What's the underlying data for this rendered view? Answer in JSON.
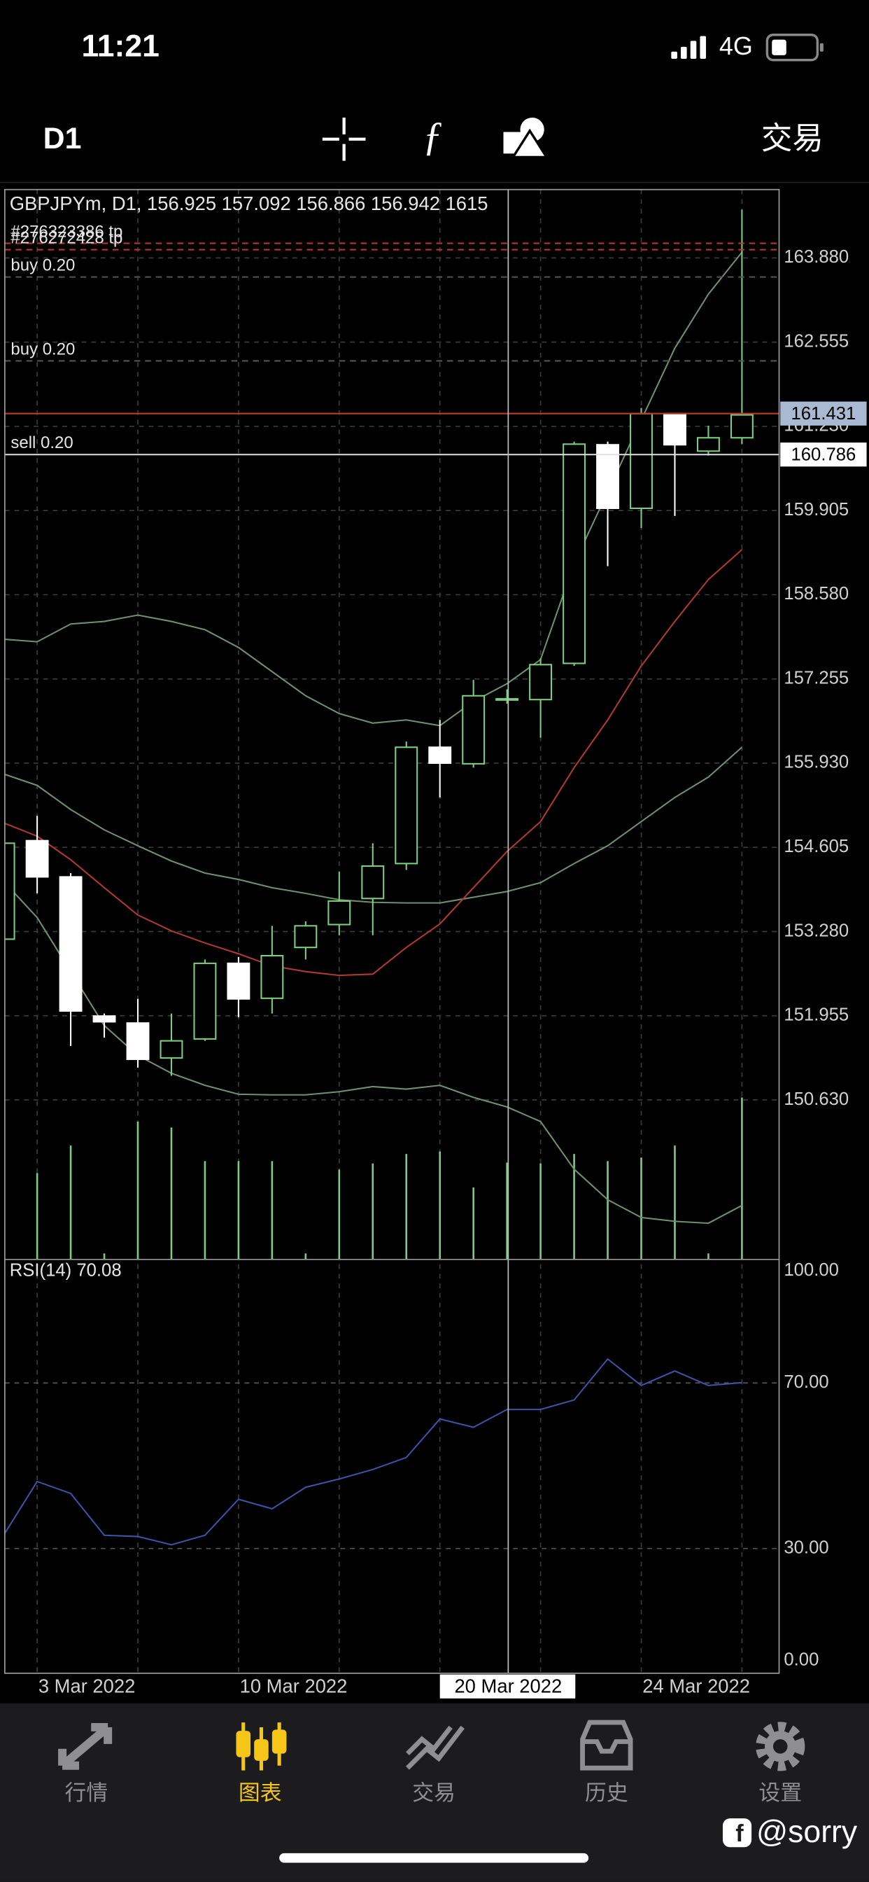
{
  "status_bar": {
    "time": "11:21",
    "network": "4G"
  },
  "toolbar": {
    "timeframe": "D1",
    "trade": "交易"
  },
  "chart_data": {
    "type": "candlestick",
    "title": "GBPJPYm, D1, 156.925 157.092 156.866 156.942 1615",
    "categories": [
      null,
      "3 Mar 2022",
      null,
      null,
      null,
      null,
      null,
      "10 Mar 2022",
      null,
      null,
      null,
      null,
      null,
      null,
      null,
      "20 Mar 2022",
      null,
      null,
      null,
      "24 Mar 2022",
      null,
      null,
      null
    ],
    "open": [
      153.16,
      154.71,
      154.14,
      151.95,
      151.84,
      151.29,
      151.59,
      152.78,
      152.23,
      153.03,
      153.39,
      153.8,
      154.35,
      156.18,
      155.92,
      156.925,
      156.93,
      157.5,
      160.94,
      159.94,
      161.43,
      160.84,
      161.05
    ],
    "high": [
      154.82,
      155.1,
      154.2,
      151.99,
      152.22,
      151.99,
      152.84,
      152.88,
      153.37,
      153.44,
      154.22,
      154.67,
      156.27,
      156.61,
      157.24,
      157.092,
      157.58,
      160.99,
      160.99,
      161.52,
      161.43,
      161.24,
      164.64
    ],
    "low": [
      153.03,
      153.88,
      151.48,
      151.61,
      151.14,
      151.01,
      151.56,
      151.93,
      151.99,
      152.84,
      153.22,
      153.22,
      154.25,
      155.39,
      155.86,
      156.866,
      156.33,
      157.46,
      159.03,
      159.63,
      159.82,
      160.77,
      160.95
    ],
    "close": [
      154.67,
      154.14,
      152.03,
      151.86,
      151.27,
      151.56,
      152.78,
      152.22,
      152.9,
      153.37,
      153.76,
      154.31,
      156.18,
      155.93,
      156.99,
      156.942,
      157.48,
      160.95,
      159.94,
      161.43,
      160.94,
      161.05,
      161.41
    ],
    "bull_color": "#7ccf7c",
    "bear_color": "#ffffff",
    "ylim": [
      148.12,
      164.956
    ],
    "yticks": [
      {
        "value": 163.88,
        "label": "163.880"
      },
      {
        "value": 162.555,
        "label": "162.555"
      },
      {
        "value": 161.23,
        "label": "161.230"
      },
      {
        "value": 159.905,
        "label": "159.905"
      },
      {
        "value": 158.58,
        "label": "158.580"
      },
      {
        "value": 157.255,
        "label": "157.255"
      },
      {
        "value": 155.93,
        "label": "155.930"
      },
      {
        "value": 154.605,
        "label": "154.605"
      },
      {
        "value": 153.28,
        "label": "153.280"
      },
      {
        "value": 151.955,
        "label": "151.955"
      },
      {
        "value": 150.63,
        "label": "150.630"
      }
    ],
    "grid": true,
    "crosshair_index": 15,
    "overlays": [
      {
        "color": "#6f8f73",
        "values": [
          157.88,
          157.84,
          158.12,
          158.16,
          158.26,
          158.16,
          158.03,
          157.75,
          157.37,
          156.99,
          156.71,
          156.56,
          156.61,
          156.52,
          156.9,
          157.18,
          157.56,
          159.07,
          160.2,
          161.33,
          162.46,
          163.31,
          163.97
        ]
      },
      {
        "color": "#6f8f73",
        "values": [
          155.76,
          155.58,
          155.2,
          154.88,
          154.63,
          154.39,
          154.2,
          154.1,
          153.97,
          153.88,
          153.78,
          153.74,
          153.73,
          153.73,
          153.82,
          153.91,
          154.05,
          154.35,
          154.63,
          155.01,
          155.39,
          155.71,
          156.18
        ]
      },
      {
        "color": "#6f8f73",
        "values": [
          154.07,
          153.5,
          152.65,
          151.8,
          151.33,
          151.05,
          150.86,
          150.72,
          150.71,
          150.71,
          150.76,
          150.84,
          150.8,
          150.86,
          150.67,
          150.52,
          150.29,
          149.54,
          149.06,
          148.78,
          148.72,
          148.69,
          148.97
        ]
      },
      {
        "color": "#b03a2e",
        "values": [
          154.99,
          154.78,
          154.41,
          153.97,
          153.54,
          153.29,
          153.1,
          152.93,
          152.74,
          152.65,
          152.59,
          152.61,
          153.03,
          153.4,
          153.97,
          154.54,
          155.01,
          155.86,
          156.61,
          157.46,
          158.16,
          158.82,
          159.29
        ]
      }
    ],
    "levels": [
      {
        "label": "#276323386 tp",
        "value": 164.11,
        "color": "#c0392b",
        "dashed": true
      },
      {
        "label": "#276272428 tp",
        "value": 164.01,
        "color": "#c0392b",
        "dashed": true
      },
      {
        "label": "buy 0.20",
        "value": 163.58,
        "color": "#555555",
        "dashed": true
      },
      {
        "label": "buy 0.20",
        "value": 162.26,
        "color": "#555555",
        "dashed": true
      },
      {
        "label": "sell 0.20",
        "value": 160.786,
        "color": "#e0e0e0",
        "dashed": false,
        "tag_color": "#ffffff"
      },
      {
        "value": 161.431,
        "color": "#c0392b",
        "dashed": false,
        "tag_color": "#a9b9d2"
      }
    ],
    "volume": {
      "color": "#7ccf7c",
      "ylim": [
        0,
        2700
      ],
      "values": [
        null,
        1440,
        1900,
        100,
        2300,
        2200,
        1640,
        1640,
        1640,
        100,
        1500,
        1600,
        1760,
        1800,
        1200,
        1615,
        1600,
        1760,
        1640,
        1700,
        1900,
        100,
        2700
      ]
    },
    "rsi": {
      "title": "RSI(14) 70.08",
      "color": "#3d52a8",
      "ylim": [
        0,
        100
      ],
      "yticks": [
        {
          "value": 100,
          "label": "100.00"
        },
        {
          "value": 70,
          "label": "70.00"
        },
        {
          "value": 30,
          "label": "30.00"
        },
        {
          "value": 0,
          "label": "0.00"
        }
      ],
      "values": [
        33.2,
        46.2,
        43.3,
        33.2,
        32.9,
        30.9,
        33.2,
        41.9,
        39.6,
        44.8,
        46.8,
        49.1,
        52.0,
        61.3,
        59.3,
        63.6,
        63.6,
        65.9,
        75.8,
        69.4,
        72.9,
        69.4,
        70.08
      ]
    }
  },
  "tab_bar": {
    "tabs": [
      "行情",
      "图表",
      "交易",
      "历史",
      "设置"
    ],
    "active": 1
  },
  "watermark": "@sorry"
}
